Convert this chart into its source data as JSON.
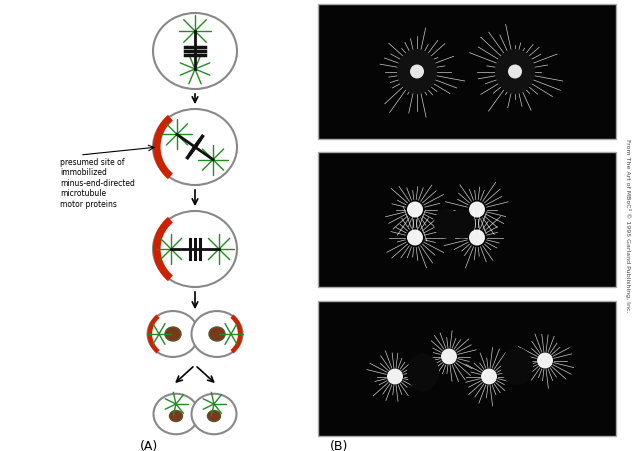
{
  "bg_color": "#ffffff",
  "right_text": "From The Art of MBoC³ © 1995 Garland Publishing, Inc.",
  "label_A": "(A)",
  "label_B": "(B)",
  "annotation_text": "presumed site of\nimmobilized\nminus-end-directed\nmicrotubule\nmotor proteins",
  "cell_outline": "#888888",
  "spindle_color": "#111111",
  "aster_color": "#228B22",
  "cortex_color": "#cc2200",
  "nucleus_color": "#7a3a1a"
}
